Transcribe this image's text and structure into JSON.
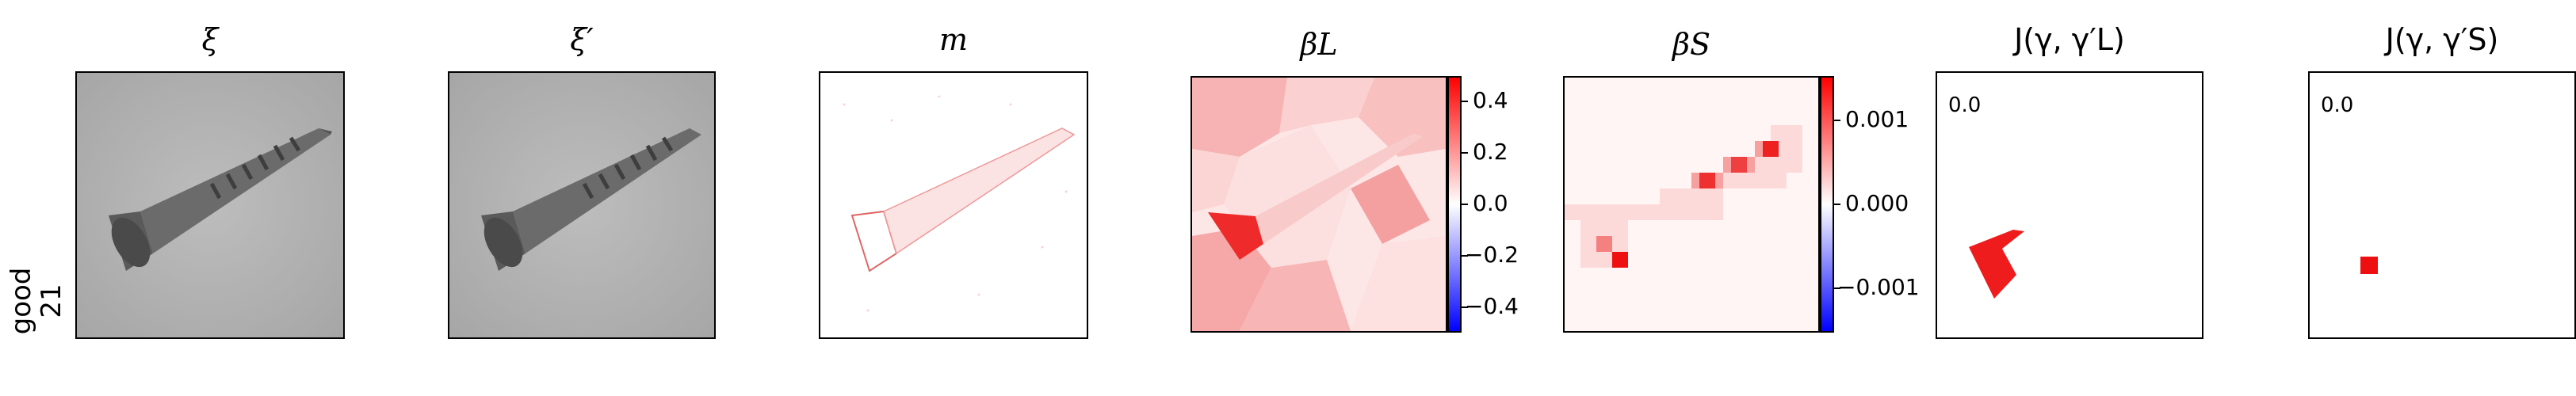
{
  "row_label": [
    "good",
    "21"
  ],
  "panels": {
    "xi": {
      "title": "ξ"
    },
    "xi_prime": {
      "title": "ξ′"
    },
    "m": {
      "title": "m"
    },
    "beta_L": {
      "title": "βL",
      "colorbar_ticks": [
        "0.4",
        "0.2",
        "0.0",
        "−0.2",
        "−0.4"
      ]
    },
    "beta_S": {
      "title": "βS",
      "colorbar_ticks": [
        "0.001",
        "0.000",
        "−0.001"
      ]
    },
    "j_L": {
      "title": "J(γ, γ′L)",
      "value": "0.0"
    },
    "j_S": {
      "title": "J(γ, γ′S)",
      "value": "0.0"
    }
  },
  "colors": {
    "positive": "#ff0000",
    "zero": "#ffffff",
    "negative": "#0000ff",
    "background_gray": "#b4b4b4"
  }
}
